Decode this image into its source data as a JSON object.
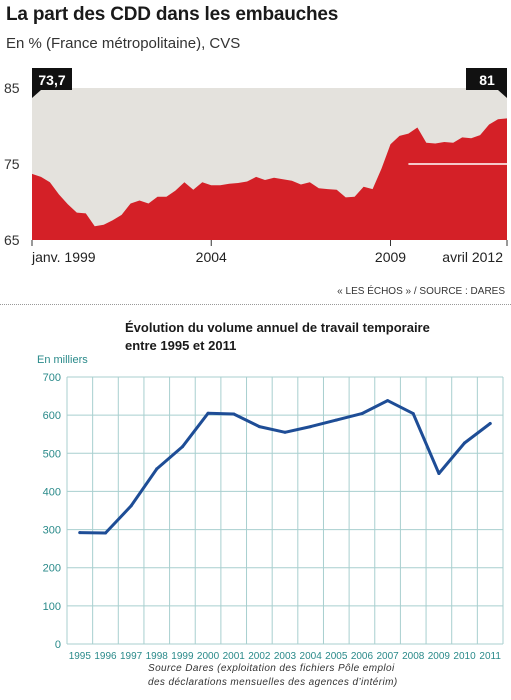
{
  "chart_data": [
    {
      "type": "area",
      "title": "La part des CDD dans les embauches",
      "subtitle": "En % (France métropolitaine), CVS",
      "source": "« LES ÉCHOS » / SOURCE : DARES",
      "ylim": [
        65,
        85
      ],
      "y_ticks": [
        "85",
        "75",
        "65"
      ],
      "x_ticks": [
        "janv. 1999",
        "2004",
        "2009",
        "avril 2012"
      ],
      "x_tick_values": [
        1999.0,
        2004.0,
        2009.0,
        2012.25
      ],
      "xlim": [
        1999.0,
        2012.25
      ],
      "start_label": "73,7",
      "end_label": "81",
      "reference_line": 75,
      "colors": {
        "fill": "#d42027",
        "background": "#e4e2dd",
        "reference": "#ffffff"
      },
      "series": [
        {
          "x": [
            1999.0,
            1999.25,
            1999.5,
            1999.75,
            2000.0,
            2000.25,
            2000.5,
            2000.75,
            2001.0,
            2001.25,
            2001.5,
            2001.75,
            2002.0,
            2002.25,
            2002.5,
            2002.75,
            2003.0,
            2003.25,
            2003.5,
            2003.75,
            2004.0,
            2004.25,
            2004.5,
            2004.75,
            2005.0,
            2005.25,
            2005.5,
            2005.75,
            2006.0,
            2006.25,
            2006.5,
            2006.75,
            2007.0,
            2007.25,
            2007.5,
            2007.75,
            2008.0,
            2008.25,
            2008.5,
            2008.75,
            2009.0,
            2009.25,
            2009.5,
            2009.75,
            2010.0,
            2010.25,
            2010.5,
            2010.75,
            2011.0,
            2011.25,
            2011.5,
            2011.75,
            2012.0,
            2012.25
          ],
          "values": [
            73.7,
            73.3,
            72.6,
            71.0,
            69.7,
            68.6,
            68.5,
            66.8,
            67.0,
            67.6,
            68.3,
            69.8,
            70.2,
            69.8,
            70.7,
            70.7,
            71.5,
            72.6,
            71.6,
            72.6,
            72.2,
            72.2,
            72.4,
            72.5,
            72.7,
            73.3,
            72.9,
            73.2,
            73.0,
            72.8,
            72.3,
            72.6,
            71.8,
            71.7,
            71.6,
            70.6,
            70.7,
            72.0,
            71.7,
            74.4,
            77.6,
            78.7,
            79.0,
            79.8,
            77.8,
            77.7,
            77.9,
            77.8,
            78.5,
            78.4,
            78.8,
            80.2,
            80.9,
            81.0
          ]
        }
      ]
    },
    {
      "type": "line",
      "title": "Évolution du volume annuel de travail temporaire entre 1995 et 2011",
      "ylabel": "En milliers",
      "ylim": [
        0,
        700
      ],
      "y_ticks": [
        "0",
        "100",
        "200",
        "300",
        "400",
        "500",
        "600",
        "700"
      ],
      "categories": [
        "1995",
        "1996",
        "1997",
        "1998",
        "1999",
        "2000",
        "2001",
        "2002",
        "2003",
        "2004",
        "2005",
        "2006",
        "2007",
        "2008",
        "2009",
        "2010",
        "2011"
      ],
      "grid": true,
      "colors": {
        "line": "#1e4d96",
        "grid": "#a8cfcf",
        "axis_text": "#2a8a8a"
      },
      "series": [
        {
          "values": [
            292,
            291,
            362,
            459,
            517,
            605,
            603,
            570,
            555,
            570,
            587,
            604,
            638,
            604,
            447,
            527,
            578
          ]
        }
      ],
      "source": [
        "Source Dares (exploitation des fichiers Pôle emploi",
        "des déclarations mensuelles des agences d’intérim)"
      ]
    }
  ]
}
